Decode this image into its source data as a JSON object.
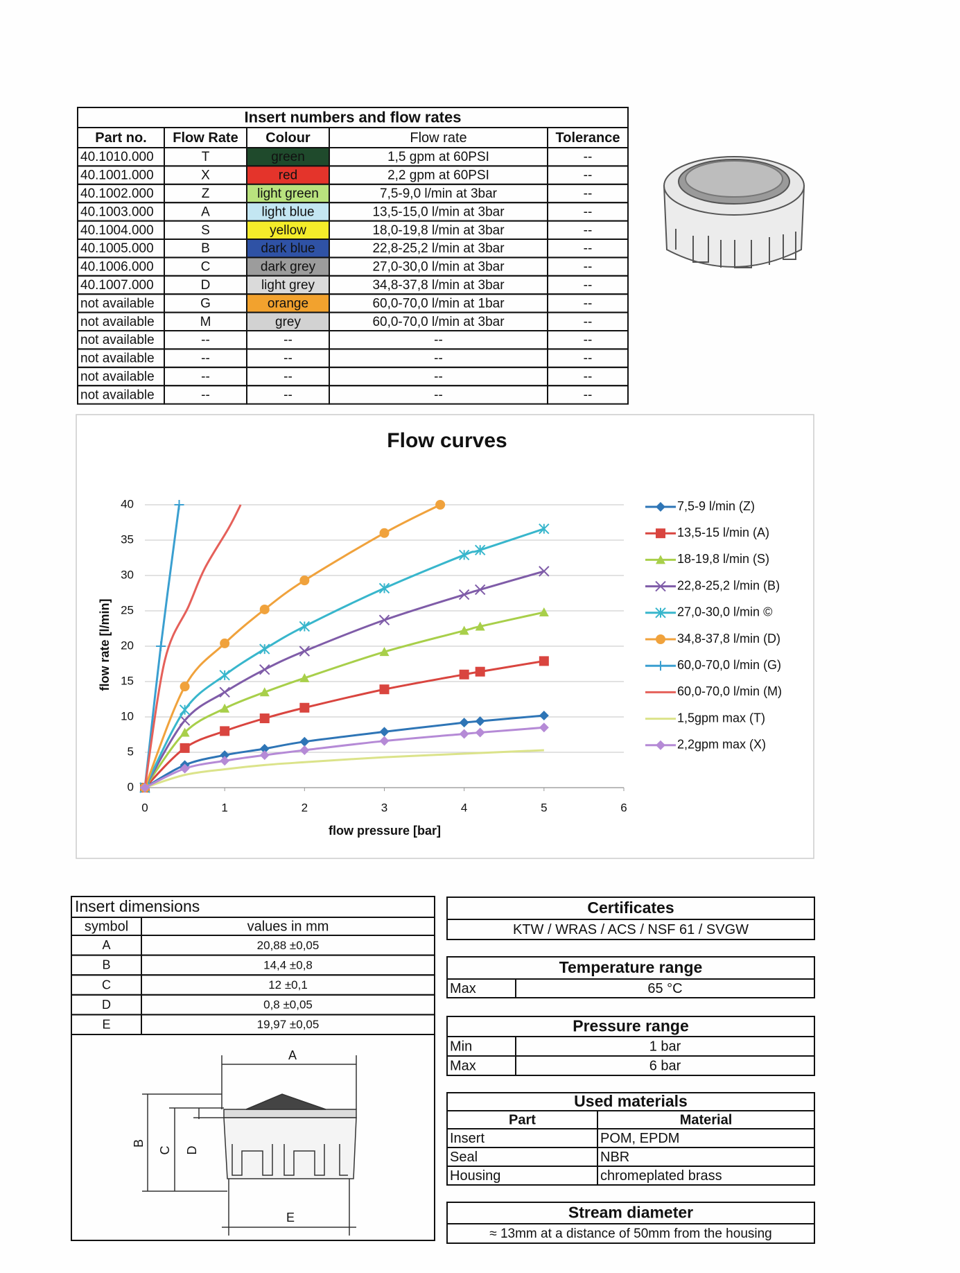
{
  "insert_table": {
    "title": "Insert numbers and flow rates",
    "headers": [
      "Part no.",
      "Flow Rate",
      "Colour",
      "Flow rate",
      "Tolerance"
    ],
    "rows": [
      [
        "40.1010.000",
        "T",
        "green",
        "1,5 gpm  at 60PSI",
        "--"
      ],
      [
        "40.1001.000",
        "X",
        "red",
        "2,2 gpm  at 60PSI",
        "--"
      ],
      [
        "40.1002.000",
        "Z",
        "light green",
        "7,5-9,0 l/min  at 3bar",
        "--"
      ],
      [
        "40.1003.000",
        "A",
        "light blue",
        "13,5-15,0 l/min  at 3bar",
        "--"
      ],
      [
        "40.1004.000",
        "S",
        "yellow",
        "18,0-19,8 l/min  at 3bar",
        "--"
      ],
      [
        "40.1005.000",
        "B",
        "dark blue",
        "22,8-25,2 l/min  at 3bar",
        "--"
      ],
      [
        "40.1006.000",
        "C",
        "dark grey",
        "27,0-30,0 l/min  at 3bar",
        "--"
      ],
      [
        "40.1007.000",
        "D",
        "light grey",
        "34,8-37,8 l/min  at 3bar",
        "--"
      ],
      [
        "not available",
        "G",
        "orange",
        "60,0-70,0 l/min  at 1bar",
        "--"
      ],
      [
        "not available",
        "M",
        "grey",
        "60,0-70,0 l/min  at 3bar",
        "--"
      ],
      [
        "not available",
        "--",
        "--",
        "--",
        "--"
      ],
      [
        "not available",
        "--",
        "--",
        "--",
        "--"
      ],
      [
        "not available",
        "--",
        "--",
        "--",
        "--"
      ],
      [
        "not available",
        "--",
        "--",
        "--",
        "--"
      ]
    ],
    "swatches": [
      "#1f4a2c",
      "#e4342b",
      "#b9e27e",
      "#c3e6f2",
      "#f4ec2a",
      "#2f52a5",
      "#9c9c9c",
      "#dadada",
      "#f2a22e",
      "#d2d2d2",
      null,
      null,
      null,
      null
    ]
  },
  "chart_data": {
    "type": "line",
    "title": "Flow curves",
    "x_label": "flow pressure [bar]",
    "y_label": "flow rate [l/min]",
    "xlim": [
      0,
      6
    ],
    "ylim": [
      0,
      40
    ],
    "xticks": [
      0,
      1,
      2,
      3,
      4,
      5,
      6
    ],
    "yticks": [
      0,
      5,
      10,
      15,
      20,
      25,
      30,
      35,
      40
    ],
    "grid": true,
    "series": [
      {
        "name": "7,5-9 l/min (Z)",
        "color": "#2e75b6",
        "marker": "diamond",
        "x": [
          0,
          0.5,
          1,
          1.5,
          2,
          3,
          4,
          4.2,
          5
        ],
        "values": [
          0,
          3.2,
          4.6,
          5.5,
          6.5,
          7.9,
          9.2,
          9.4,
          10.2
        ]
      },
      {
        "name": "13,5-15 l/min (A)",
        "color": "#d9453f",
        "marker": "square",
        "x": [
          0,
          0.5,
          1,
          1.5,
          2,
          3,
          4,
          4.2,
          5
        ],
        "values": [
          0,
          5.6,
          8,
          9.8,
          11.3,
          13.9,
          16,
          16.4,
          17.9
        ]
      },
      {
        "name": "18-19,8 l/min (S)",
        "color": "#a8cf4a",
        "marker": "triangle",
        "x": [
          0,
          0.5,
          1,
          1.5,
          2,
          3,
          4,
          4.2,
          5
        ],
        "values": [
          0,
          7.8,
          11.2,
          13.5,
          15.5,
          19.2,
          22.2,
          22.8,
          24.8
        ]
      },
      {
        "name": "22,8-25,2 l/min (B)",
        "color": "#7f5ca8",
        "marker": "cross",
        "x": [
          0,
          0.5,
          1,
          1.5,
          2,
          3,
          4,
          4.2,
          5
        ],
        "values": [
          0,
          9.5,
          13.5,
          16.7,
          19.3,
          23.7,
          27.3,
          28,
          30.6
        ]
      },
      {
        "name": "27,0-30,0 l/min ©",
        "color": "#38b6cc",
        "marker": "star",
        "x": [
          0,
          0.5,
          1,
          1.5,
          2,
          3,
          4,
          4.2,
          5
        ],
        "values": [
          0,
          11,
          15.9,
          19.6,
          22.8,
          28.2,
          32.9,
          33.6,
          36.6
        ]
      },
      {
        "name": "34,8-37,8 l/min (D)",
        "color": "#f0a23c",
        "marker": "circle",
        "x": [
          0,
          0.5,
          1,
          1.5,
          2,
          3,
          3.7
        ],
        "values": [
          0,
          14.3,
          20.4,
          25.2,
          29.3,
          36,
          40
        ]
      },
      {
        "name": "60,0-70,0 l/min (G)",
        "color": "#3a9fd0",
        "marker": "plus",
        "x": [
          0,
          0.2,
          0.43
        ],
        "values": [
          0,
          20,
          40
        ]
      },
      {
        "name": "60,0-70,0 l/min (M)",
        "color": "#e5605a",
        "marker": "none",
        "x": [
          0,
          0.25,
          0.55,
          0.75,
          1.05,
          1.2
        ],
        "values": [
          0,
          18,
          25.7,
          31,
          36.7,
          40
        ]
      },
      {
        "name": "1,5gpm max (T)",
        "color": "#dbe38a",
        "marker": "none",
        "x": [
          0,
          0.5,
          1,
          1.5,
          2,
          3,
          4,
          5
        ],
        "values": [
          0,
          1.8,
          2.6,
          3.2,
          3.6,
          4.3,
          4.8,
          5.3
        ]
      },
      {
        "name": "2,2gpm max (X)",
        "color": "#b58ad6",
        "marker": "diamond",
        "x": [
          0,
          0.5,
          1,
          1.5,
          2,
          3,
          4,
          4.2,
          5
        ],
        "values": [
          0,
          2.7,
          3.8,
          4.6,
          5.3,
          6.6,
          7.6,
          7.8,
          8.5
        ]
      }
    ]
  },
  "dimensions": {
    "title": "Insert dimensions",
    "headers": [
      "symbol",
      "values in mm"
    ],
    "rows": [
      [
        "A",
        "20,88 ±0,05"
      ],
      [
        "B",
        "14,4 ±0,8"
      ],
      [
        "C",
        "12 ±0,1"
      ],
      [
        "D",
        "0,8 ±0,05"
      ],
      [
        "E",
        "19,97 ±0,05"
      ]
    ],
    "drawing_labels": [
      "A",
      "B",
      "C",
      "D",
      "E"
    ]
  },
  "certificates": {
    "title": "Certificates",
    "text": "KTW / WRAS / ACS / NSF 61 / SVGW"
  },
  "temperature": {
    "title": "Temperature range",
    "rows": [
      [
        "Max",
        "65 °C"
      ]
    ]
  },
  "pressure": {
    "title": "Pressure range",
    "rows": [
      [
        "Min",
        "1 bar"
      ],
      [
        "Max",
        "6 bar"
      ]
    ]
  },
  "materials": {
    "title": "Used materials",
    "headers": [
      "Part",
      "Material"
    ],
    "rows": [
      [
        "Insert",
        "POM, EPDM"
      ],
      [
        "Seal",
        "NBR"
      ],
      [
        "Housing",
        "chromeplated brass"
      ]
    ]
  },
  "stream": {
    "title": "Stream diameter",
    "text": "≈ 13mm at a distance of 50mm from the housing"
  }
}
